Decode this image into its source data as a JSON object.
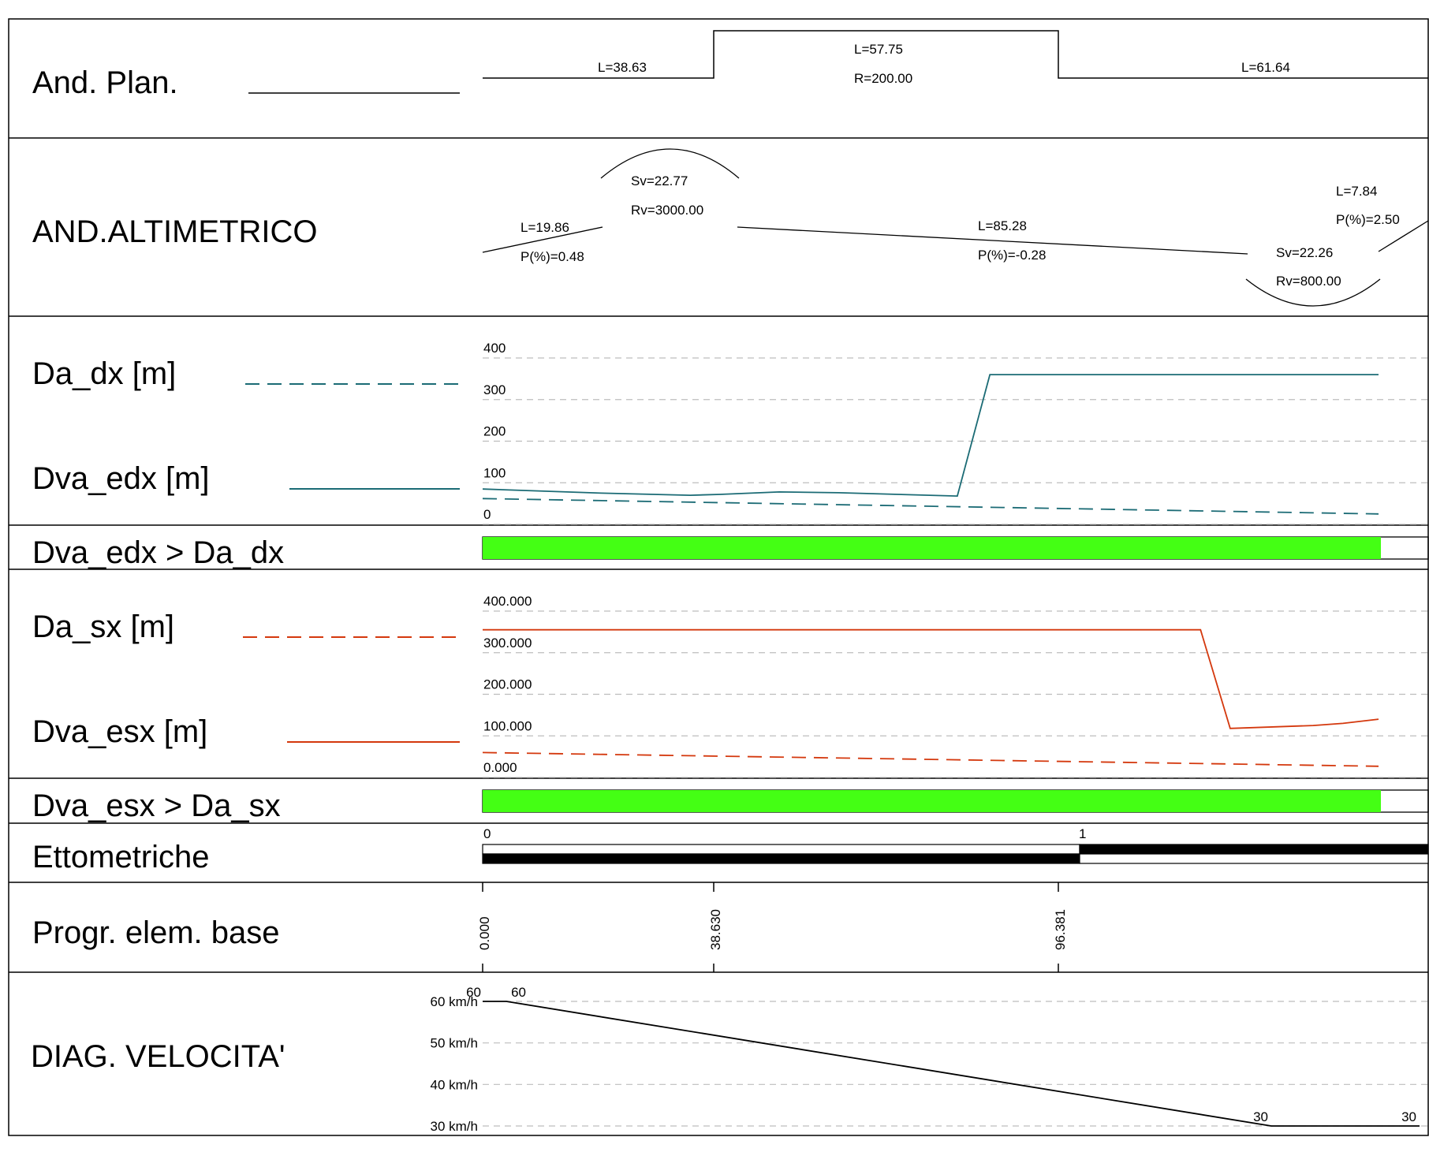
{
  "colors": {
    "dx": "#1b6b75",
    "sx": "#d4380d",
    "check_bar": "#44ff14",
    "grid": "#bdbdbd",
    "line": "#000000"
  },
  "rows": {
    "plan": "And. Plan.",
    "altimetric": "AND.ALTIMETRICO",
    "da_dx": "Da_dx [m]",
    "dva_edx": "Dva_edx [m]",
    "check_dx": "Dva_edx > Da_dx",
    "da_sx": "Da_sx [m]",
    "dva_esx": "Dva_esx [m]",
    "check_sx": "Dva_esx > Da_sx",
    "ettometriche": "Ettometriche",
    "progr": "Progr. elem. base",
    "velocity": "DIAG. VELOCITA'"
  },
  "plan": {
    "seg1": "L=38.63",
    "seg2_len": "L=57.75",
    "seg2_rad": "R=200.00",
    "seg3": "L=61.64"
  },
  "altimetric": {
    "g1_len": "L=19.86",
    "g1_slope": "P(%)=0.48",
    "v1_sv": "Sv=22.77",
    "v1_rv": "Rv=3000.00",
    "g2_len": "L=85.28",
    "g2_slope": "P(%)=-0.28",
    "v2_sv": "Sv=22.26",
    "v2_rv": "Rv=800.00",
    "g3_len": "L=7.84",
    "g3_slope": "P(%)=2.50"
  },
  "ettometriche": {
    "mark0": "0",
    "mark1": "1"
  },
  "chart_data": [
    {
      "type": "line",
      "name": "dx",
      "x_range": [
        0,
        151
      ],
      "ylim": [
        0,
        400
      ],
      "y_ticks": [
        "0",
        "100",
        "200",
        "300",
        "400"
      ],
      "grid": true,
      "series": [
        {
          "name": "Dva_edx [m]",
          "style": "solid",
          "x": [
            0,
            20,
            35,
            40,
            50,
            60,
            70,
            80,
            85.5,
            151
          ],
          "y": [
            85,
            75,
            70,
            72,
            78,
            76,
            72,
            68,
            360,
            360
          ]
        },
        {
          "name": "Da_dx [m]",
          "style": "dashed",
          "x": [
            0,
            151
          ],
          "y": [
            62,
            25
          ]
        }
      ]
    },
    {
      "type": "line",
      "name": "sx",
      "x_range": [
        0,
        151
      ],
      "ylim": [
        0,
        400
      ],
      "y_ticks": [
        "0.000",
        "100.000",
        "200.000",
        "300.000",
        "400.000"
      ],
      "grid": true,
      "series": [
        {
          "name": "Dva_esx [m]",
          "style": "solid",
          "x": [
            0,
            121,
            126,
            140,
            145,
            151
          ],
          "y": [
            355,
            355,
            118,
            125,
            130,
            140
          ]
        },
        {
          "name": "Da_sx [m]",
          "style": "dashed",
          "x": [
            0,
            151
          ],
          "y": [
            60,
            27
          ]
        }
      ]
    },
    {
      "type": "line",
      "name": "velocity",
      "x_range": [
        0,
        158
      ],
      "ylim": [
        30,
        60
      ],
      "y_ticks": [
        "30 km/h",
        "40 km/h",
        "50 km/h",
        "60 km/h"
      ],
      "grid": true,
      "series": [
        {
          "name": "velocity",
          "x": [
            0,
            4,
            133,
            158
          ],
          "y": [
            60,
            60,
            30,
            30
          ]
        }
      ],
      "point_labels": [
        "60",
        "60",
        "30",
        "30"
      ]
    }
  ],
  "checks": {
    "dx_fraction": 0.95,
    "sx_fraction": 0.95
  },
  "progressives": [
    "0.000",
    "38.630",
    "96.381"
  ]
}
